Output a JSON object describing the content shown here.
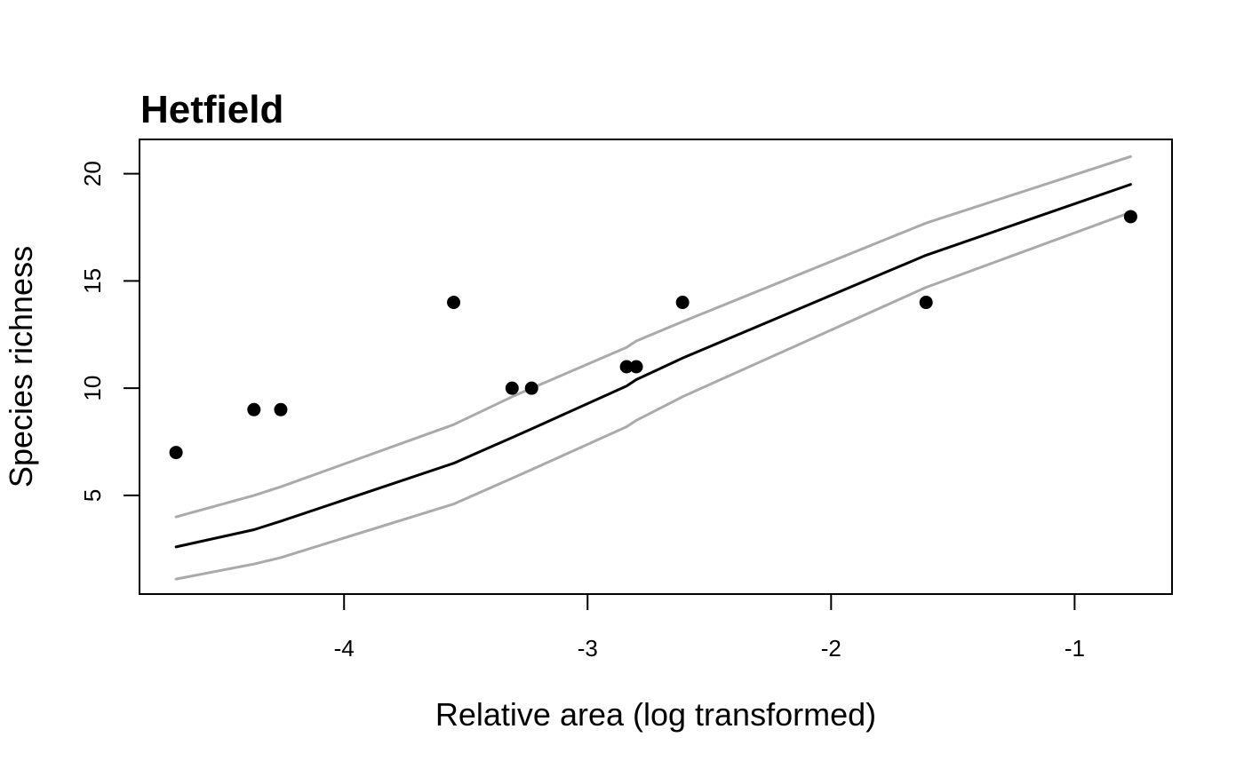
{
  "chart_data": {
    "type": "scatter",
    "title": "Hetfield",
    "xlabel": "Relative area (log transformed)",
    "ylabel": "Species richness",
    "xlim": [
      -4.84,
      -0.6
    ],
    "ylim": [
      0.4,
      21.6
    ],
    "xticks": [
      -4,
      -3,
      -2,
      -1
    ],
    "yticks": [
      5,
      10,
      15,
      20
    ],
    "grid": false,
    "points": {
      "x": [
        -4.69,
        -4.37,
        -4.26,
        -3.55,
        -3.31,
        -3.23,
        -2.84,
        -2.8,
        -2.61,
        -1.61,
        -0.77
      ],
      "y": [
        7,
        9,
        9,
        14,
        10,
        10,
        11,
        11,
        14,
        14,
        18
      ],
      "color": "#000000"
    },
    "series": [
      {
        "role": "fit",
        "color": "#000000",
        "x": [
          -4.69,
          -4.37,
          -4.26,
          -3.55,
          -3.31,
          -3.23,
          -2.84,
          -2.8,
          -2.61,
          -1.61,
          -0.77
        ],
        "y": [
          2.6,
          3.4,
          3.8,
          6.5,
          7.7,
          8.1,
          10.1,
          10.4,
          11.4,
          16.2,
          19.5
        ]
      },
      {
        "role": "upper-interval",
        "color": "#aaaaaa",
        "x": [
          -4.69,
          -4.37,
          -4.26,
          -3.55,
          -3.31,
          -3.23,
          -2.84,
          -2.8,
          -2.61,
          -1.61,
          -0.77
        ],
        "y": [
          4.0,
          5.0,
          5.4,
          8.3,
          9.6,
          10.0,
          11.9,
          12.2,
          13.1,
          17.7,
          20.8
        ]
      },
      {
        "role": "lower-interval",
        "color": "#aaaaaa",
        "x": [
          -4.69,
          -4.37,
          -4.26,
          -3.55,
          -3.31,
          -3.23,
          -2.84,
          -2.8,
          -2.61,
          -1.61,
          -0.77
        ],
        "y": [
          1.1,
          1.8,
          2.1,
          4.6,
          5.8,
          6.2,
          8.2,
          8.5,
          9.6,
          14.7,
          18.2
        ]
      }
    ]
  }
}
